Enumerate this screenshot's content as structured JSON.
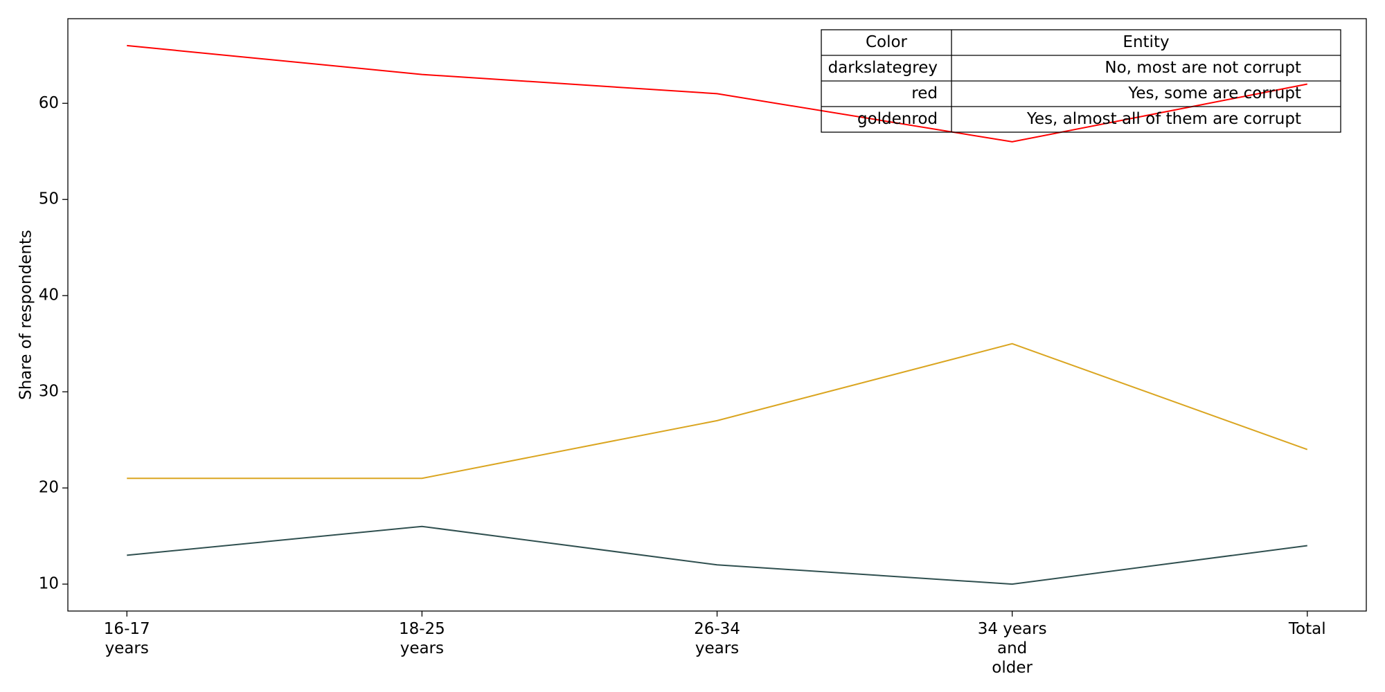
{
  "chart_data": {
    "type": "line",
    "y_label": "Share of respondents",
    "categories": [
      "16-17\nyears",
      "18-25\nyears",
      "26-34\nyears",
      "34 years\nand\nolder",
      "Total"
    ],
    "series": [
      {
        "name": "No, most are not corrupt",
        "color": "darkslategrey",
        "values": [
          13,
          16,
          12,
          10,
          14
        ]
      },
      {
        "name": "Yes, some are corrupt",
        "color": "red",
        "values": [
          66,
          63,
          61,
          56,
          62
        ]
      },
      {
        "name": "Yes, almost all of them are corrupt",
        "color": "goldenrod",
        "values": [
          21,
          21,
          27,
          35,
          24
        ]
      }
    ],
    "legend_header": [
      "Color",
      "Entity"
    ],
    "legend_position": "upper right",
    "ylim": [
      7.2,
      68.8
    ],
    "yticks": [
      10,
      20,
      30,
      40,
      50,
      60
    ],
    "grid": false
  }
}
